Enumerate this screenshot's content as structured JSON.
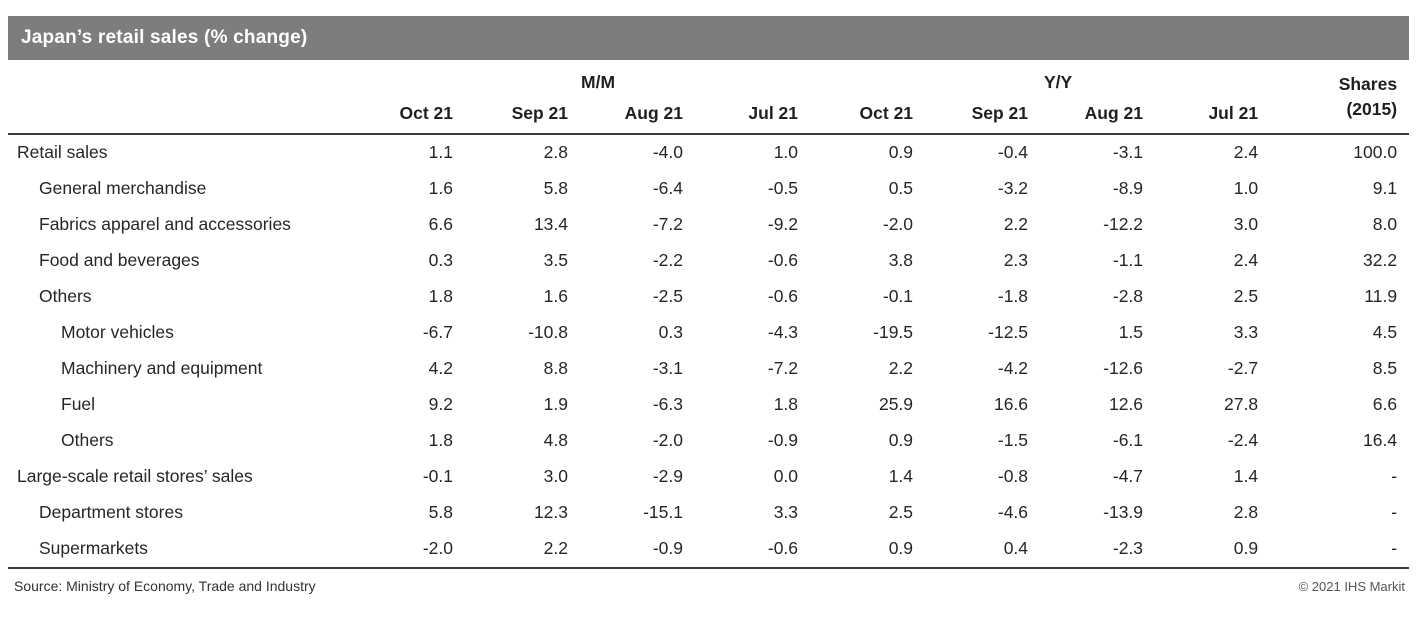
{
  "title_bar": {
    "title": "Japan’s retail sales (% change)"
  },
  "chart_data": {
    "type": "table",
    "title": "Japan’s retail sales (% change)",
    "group_headers": [
      {
        "label": "M/M",
        "span": 4
      },
      {
        "label": "Y/Y",
        "span": 4
      }
    ],
    "shares_header": {
      "line1": "Shares",
      "line2": "(2015)"
    },
    "columns": [
      "Oct 21",
      "Sep 21",
      "Aug 21",
      "Jul 21",
      "Oct 21",
      "Sep 21",
      "Aug 21",
      "Jul 21"
    ],
    "rows": [
      {
        "label": "Retail sales",
        "indent": 0,
        "values": [
          "1.1",
          "2.8",
          "-4.0",
          "1.0",
          "0.9",
          "-0.4",
          "-3.1",
          "2.4",
          "100.0"
        ]
      },
      {
        "label": "General merchandise",
        "indent": 1,
        "values": [
          "1.6",
          "5.8",
          "-6.4",
          "-0.5",
          "0.5",
          "-3.2",
          "-8.9",
          "1.0",
          "9.1"
        ]
      },
      {
        "label": "Fabrics apparel and accessories",
        "indent": 1,
        "values": [
          "6.6",
          "13.4",
          "-7.2",
          "-9.2",
          "-2.0",
          "2.2",
          "-12.2",
          "3.0",
          "8.0"
        ]
      },
      {
        "label": "Food and beverages",
        "indent": 1,
        "values": [
          "0.3",
          "3.5",
          "-2.2",
          "-0.6",
          "3.8",
          "2.3",
          "-1.1",
          "2.4",
          "32.2"
        ]
      },
      {
        "label": "Others",
        "indent": 1,
        "values": [
          "1.8",
          "1.6",
          "-2.5",
          "-0.6",
          "-0.1",
          "-1.8",
          "-2.8",
          "2.5",
          "11.9"
        ]
      },
      {
        "label": "Motor vehicles",
        "indent": 2,
        "values": [
          "-6.7",
          "-10.8",
          "0.3",
          "-4.3",
          "-19.5",
          "-12.5",
          "1.5",
          "3.3",
          "4.5"
        ]
      },
      {
        "label": "Machinery and equipment",
        "indent": 2,
        "values": [
          "4.2",
          "8.8",
          "-3.1",
          "-7.2",
          "2.2",
          "-4.2",
          "-12.6",
          "-2.7",
          "8.5"
        ]
      },
      {
        "label": "Fuel",
        "indent": 2,
        "values": [
          "9.2",
          "1.9",
          "-6.3",
          "1.8",
          "25.9",
          "16.6",
          "12.6",
          "27.8",
          "6.6"
        ]
      },
      {
        "label": "Others",
        "indent": 2,
        "values": [
          "1.8",
          "4.8",
          "-2.0",
          "-0.9",
          "0.9",
          "-1.5",
          "-6.1",
          "-2.4",
          "16.4"
        ]
      },
      {
        "label": "Large-scale retail stores’ sales",
        "indent": 0,
        "values": [
          "-0.1",
          "3.0",
          "-2.9",
          "0.0",
          "1.4",
          "-0.8",
          "-4.7",
          "1.4",
          "-"
        ]
      },
      {
        "label": "Department stores",
        "indent": 1,
        "values": [
          "5.8",
          "12.3",
          "-15.1",
          "3.3",
          "2.5",
          "-4.6",
          "-13.9",
          "2.8",
          "-"
        ]
      },
      {
        "label": "Supermarkets",
        "indent": 1,
        "values": [
          "-2.0",
          "2.2",
          "-0.9",
          "-0.6",
          "0.9",
          "0.4",
          "-2.3",
          "0.9",
          "-"
        ]
      }
    ]
  },
  "footer": {
    "source": "Source: Ministry of Economy, Trade and Industry",
    "copyright": "© 2021 IHS Markit"
  },
  "colors": {
    "title_bar_bg": "#7d7d7d",
    "title_text": "#ffffff",
    "rule_line": "#3c3c3c",
    "body_text": "#262626"
  }
}
